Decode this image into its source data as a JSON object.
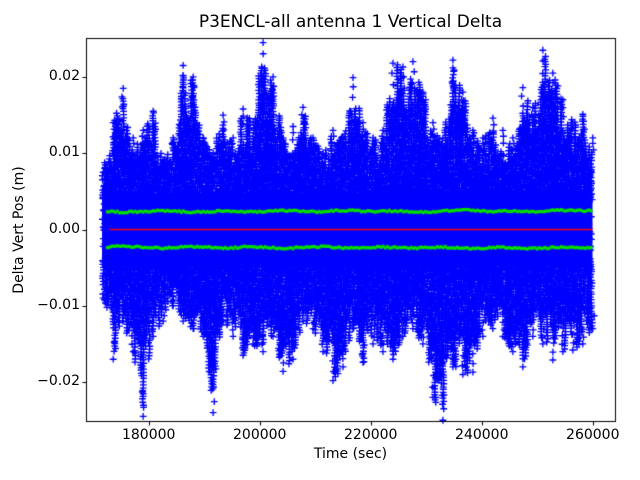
{
  "chart_data": {
    "type": "scatter",
    "title": "P3ENCL-all antenna 1 Vertical Delta",
    "xlabel": "Time (sec)",
    "ylabel": "Delta Vert Pos (m)",
    "xlim": [
      168700,
      264000
    ],
    "ylim": [
      -0.0251,
      0.0251
    ],
    "xticks": [
      {
        "value": 180000,
        "label": "180000"
      },
      {
        "value": 200000,
        "label": "200000"
      },
      {
        "value": 220000,
        "label": "220000"
      },
      {
        "value": 240000,
        "label": "240000"
      },
      {
        "value": 260000,
        "label": "260000"
      }
    ],
    "yticks": [
      {
        "value": 0.02,
        "label": "0.02"
      },
      {
        "value": 0.01,
        "label": "0.01"
      },
      {
        "value": 0.0,
        "label": "0.00"
      },
      {
        "value": -0.01,
        "label": "−0.01"
      },
      {
        "value": -0.02,
        "label": "−0.02"
      }
    ],
    "grid": false,
    "legend": "none",
    "marker": "+",
    "colors": {
      "scatter": "#0000ff",
      "smoothed_band": "#00dd00",
      "zero_line": "#ff0000",
      "axes": "#000000",
      "background": "#ffffff",
      "text": "#000000"
    },
    "scatter_series": {
      "name": "vertical-delta-samples",
      "x_start": 171800,
      "x_end": 260000,
      "core_halfwidth": 0.0047,
      "envelope_x": [
        171800,
        173600,
        175400,
        177200,
        179000,
        180800,
        182600,
        184400,
        186200,
        188000,
        189800,
        191600,
        193400,
        195200,
        197000,
        198800,
        200600,
        202400,
        204200,
        206000,
        207800,
        209600,
        211400,
        213200,
        215000,
        216800,
        218600,
        220400,
        222200,
        224000,
        225800,
        227600,
        229400,
        231200,
        233000,
        234800,
        236600,
        238400,
        240200,
        242000,
        243800,
        245600,
        247400,
        249200,
        251000,
        252800,
        254600,
        256400,
        258200,
        260000
      ],
      "envelope_upper": [
        0.0075,
        0.014,
        0.0185,
        0.012,
        0.013,
        0.0155,
        0.009,
        0.012,
        0.0215,
        0.02,
        0.012,
        0.01,
        0.015,
        0.012,
        0.0158,
        0.014,
        0.0245,
        0.02,
        0.012,
        0.0135,
        0.016,
        0.012,
        0.01,
        0.013,
        0.012,
        0.0199,
        0.014,
        0.012,
        0.013,
        0.0218,
        0.0213,
        0.022,
        0.018,
        0.014,
        0.012,
        0.0222,
        0.018,
        0.013,
        0.012,
        0.0146,
        0.013,
        0.012,
        0.0186,
        0.016,
        0.0235,
        0.0205,
        0.017,
        0.014,
        0.0151,
        0.012
      ],
      "envelope_lower": [
        -0.009,
        -0.017,
        -0.012,
        -0.016,
        -0.0245,
        -0.014,
        -0.012,
        -0.01,
        -0.012,
        -0.013,
        -0.014,
        -0.024,
        -0.012,
        -0.014,
        -0.0165,
        -0.015,
        -0.016,
        -0.014,
        -0.0186,
        -0.017,
        -0.012,
        -0.013,
        -0.016,
        -0.0198,
        -0.018,
        -0.013,
        -0.0174,
        -0.015,
        -0.016,
        -0.017,
        -0.014,
        -0.013,
        -0.015,
        -0.022,
        -0.025,
        -0.018,
        -0.019,
        -0.0187,
        -0.014,
        -0.013,
        -0.014,
        -0.016,
        -0.018,
        -0.014,
        -0.015,
        -0.0171,
        -0.016,
        -0.0158,
        -0.015,
        -0.013
      ]
    },
    "band_series": {
      "upper_name": "smoothed-upper-band",
      "lower_name": "smoothed-lower-band",
      "upper_values": [
        0.0024,
        0.00232,
        0.00228,
        0.0023,
        0.00236,
        0.00242,
        0.00245,
        0.0024,
        0.00233,
        0.00228,
        0.0023,
        0.00238,
        0.00246,
        0.00244,
        0.00236,
        0.0023,
        0.00234,
        0.00242,
        0.00248,
        0.00242,
        0.00236,
        0.00231,
        0.00234,
        0.00243,
        0.00249,
        0.00246,
        0.0024,
        0.00235,
        0.00238,
        0.00244,
        0.00241,
        0.00236,
        0.00231,
        0.00234,
        0.0024,
        0.00248,
        0.00253,
        0.00249,
        0.00242,
        0.00236,
        0.00239,
        0.00244,
        0.00241,
        0.00236,
        0.0024,
        0.00248,
        0.00252,
        0.00248,
        0.00244,
        0.00249
      ],
      "lower_values": [
        -0.0023,
        -0.00224,
        -0.0022,
        -0.00224,
        -0.00231,
        -0.00239,
        -0.00244,
        -0.00239,
        -0.00231,
        -0.00225,
        -0.00229,
        -0.00236,
        -0.00244,
        -0.0024,
        -0.00231,
        -0.00226,
        -0.00231,
        -0.00239,
        -0.00247,
        -0.00243,
        -0.00235,
        -0.00229,
        -0.00226,
        -0.00231,
        -0.0024,
        -0.00245,
        -0.0024,
        -0.00234,
        -0.0023,
        -0.00235,
        -0.00241,
        -0.00244,
        -0.0024,
        -0.00234,
        -0.0023,
        -0.00236,
        -0.00244,
        -0.00249,
        -0.00244,
        -0.00238,
        -0.00234,
        -0.00239,
        -0.00245,
        -0.00249,
        -0.00244,
        -0.00239,
        -0.00235,
        -0.00239,
        -0.00244,
        -0.0024
      ]
    },
    "zero_line": {
      "name": "zero-reference-line",
      "value": 0.0,
      "x_start": 173000,
      "x_end": 260000
    }
  }
}
